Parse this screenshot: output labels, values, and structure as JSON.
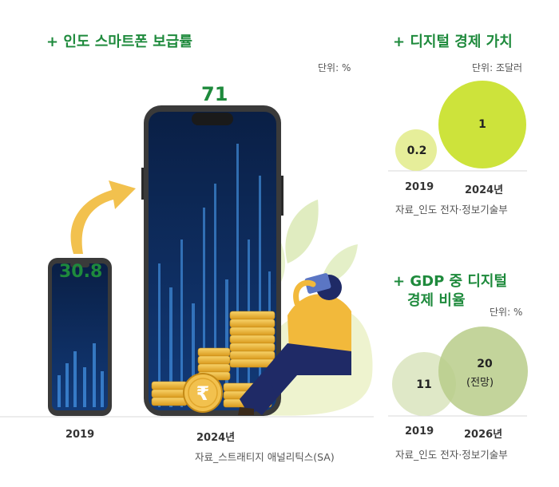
{
  "colors": {
    "accent_green": "#1e8a3c",
    "bubble_light_yellow": "#e6ee9a",
    "bubble_yellow_green": "#cde33b",
    "bubble_pale_green": "#dfe8c7",
    "bubble_green": "#b8cc8a",
    "phone_frame": "#3a3a3a",
    "screen_blue": "#0b2a5a",
    "arrow_yellow": "#f2c14e"
  },
  "left": {
    "title": "+ 인도 스마트폰 보급률",
    "unit": "단위: %",
    "source": "자료_스트래티지 애널리틱스(SA)"
  },
  "right_top": {
    "title": "+ 디지털 경제 가치",
    "unit": "단위: 조달러",
    "source": "자료_인도 전자·정보기술부"
  },
  "right_bottom": {
    "title_line1": "+ GDP 중 디지털",
    "title_line2": "경제 비율",
    "unit": "단위: %",
    "source": "자료_인도 전자·정보기술부",
    "note_2026": "(전망)"
  },
  "chart_data": [
    {
      "type": "bar",
      "title": "인도 스마트폰 보급률",
      "unit": "%",
      "categories": [
        "2019",
        "2024년"
      ],
      "values": [
        30.8,
        71
      ],
      "value_labels": [
        "30.8",
        "71"
      ]
    },
    {
      "type": "scatter",
      "title": "디지털 경제 가치",
      "unit": "조달러",
      "categories": [
        "2019",
        "2024년"
      ],
      "values": [
        0.2,
        1
      ],
      "value_labels": [
        "0.2",
        "1"
      ]
    },
    {
      "type": "scatter",
      "title": "GDP 중 디지털 경제 비율",
      "unit": "%",
      "categories": [
        "2019",
        "2026년"
      ],
      "values": [
        11,
        20
      ],
      "value_labels": [
        "11",
        "20"
      ]
    }
  ]
}
